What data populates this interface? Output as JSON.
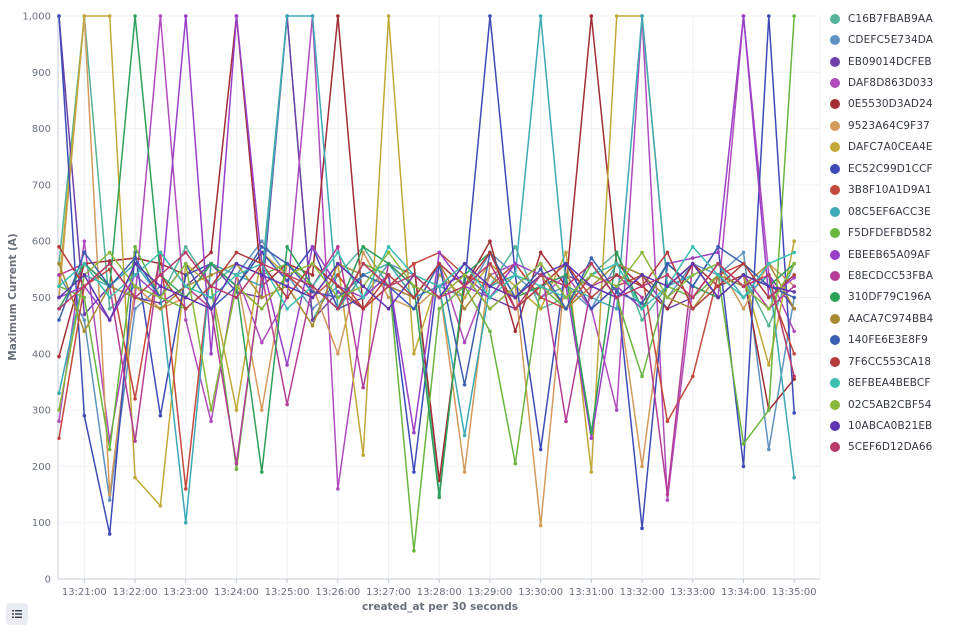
{
  "chart_data": {
    "type": "line",
    "xlabel": "created_at per 30 seconds",
    "ylabel": "Maximum Current (A)",
    "ylim": [
      0,
      1000
    ],
    "grid": true,
    "legend_position": "right",
    "x": [
      "13:20:30",
      "13:21:00",
      "13:21:30",
      "13:22:00",
      "13:22:30",
      "13:23:00",
      "13:23:30",
      "13:24:00",
      "13:24:30",
      "13:25:00",
      "13:25:30",
      "13:26:00",
      "13:26:30",
      "13:27:00",
      "13:27:30",
      "13:28:00",
      "13:28:30",
      "13:29:00",
      "13:29:30",
      "13:30:00",
      "13:30:30",
      "13:31:00",
      "13:31:30",
      "13:32:00",
      "13:32:30",
      "13:33:00",
      "13:33:30",
      "13:34:00",
      "13:34:30",
      "13:35:00"
    ],
    "x_tick_labels": [
      "13:21:00",
      "13:22:00",
      "13:23:00",
      "13:24:00",
      "13:25:00",
      "13:26:00",
      "13:27:00",
      "13:28:00",
      "13:29:00",
      "13:30:00",
      "13:31:00",
      "13:32:00",
      "13:33:00",
      "13:34:00",
      "13:35:00"
    ],
    "y_ticks": [
      0,
      100,
      200,
      300,
      400,
      500,
      600,
      700,
      800,
      900,
      1000
    ],
    "y_tick_labels": [
      "0",
      "100",
      "200",
      "300",
      "400",
      "500",
      "600",
      "700",
      "800",
      "900",
      "1,000"
    ],
    "series": [
      {
        "name": "C16B7FBAB9AA",
        "color": "#54b399",
        "values": [
          560,
          1000,
          480,
          520,
          500,
          590,
          520,
          560,
          540,
          1000,
          460,
          540,
          590,
          520,
          560,
          150,
          540,
          520,
          590,
          480,
          500,
          540,
          580,
          460,
          520,
          560,
          500,
          540,
          450,
          560
        ]
      },
      {
        "name": "CDEFC5E734DA",
        "color": "#6092c0",
        "values": [
          540,
          460,
          140,
          480,
          520,
          500,
          560,
          540,
          600,
          540,
          480,
          520,
          500,
          560,
          540,
          520,
          500,
          580,
          540,
          500,
          520,
          480,
          560,
          540,
          500,
          560,
          540,
          580,
          230,
          500
        ]
      },
      {
        "name": "EB09014DCFEB",
        "color": "#6e40aa",
        "values": [
          1000,
          470,
          520,
          500,
          490,
          520,
          560,
          510,
          500,
          1000,
          460,
          510,
          480,
          520,
          500,
          520,
          540,
          500,
          480,
          520,
          540,
          520,
          500,
          540,
          480,
          500,
          560,
          520,
          540,
          480
        ]
      },
      {
        "name": "DAF8D863D033",
        "color": "#b04bbd",
        "values": [
          280,
          600,
          245,
          500,
          1000,
          460,
          280,
          540,
          420,
          500,
          1000,
          160,
          480,
          520,
          500,
          560,
          420,
          540,
          560,
          500,
          540,
          480,
          300,
          1000,
          140,
          520,
          500,
          1000,
          540,
          440
        ]
      },
      {
        "name": "0E5530D3AD24",
        "color": "#a32d34",
        "values": [
          395,
          560,
          565,
          570,
          560,
          540,
          580,
          1000,
          520,
          560,
          540,
          1000,
          480,
          520,
          560,
          175,
          520,
          600,
          440,
          580,
          520,
          1000,
          560,
          520,
          480,
          560,
          520,
          540,
          300,
          355
        ]
      },
      {
        "name": "9523A64C9F37",
        "color": "#d49a5b",
        "values": [
          500,
          1000,
          150,
          520,
          480,
          500,
          560,
          540,
          300,
          560,
          520,
          400,
          580,
          500,
          480,
          520,
          190,
          560,
          520,
          95,
          560,
          480,
          520,
          200,
          540,
          500,
          560,
          480,
          560,
          520
        ]
      },
      {
        "name": "DAFC7A0CEA4E",
        "color": "#c0a837",
        "values": [
          520,
          1000,
          1000,
          180,
          130,
          560,
          520,
          300,
          580,
          540,
          500,
          560,
          220,
          1000,
          400,
          540,
          500,
          560,
          520,
          480,
          580,
          190,
          1000,
          1000,
          520,
          560,
          500,
          540,
          380,
          600
        ]
      },
      {
        "name": "EC52C99D1CCF",
        "color": "#3e4bb6",
        "values": [
          1000,
          290,
          80,
          580,
          290,
          540,
          560,
          520,
          580,
          530,
          590,
          480,
          500,
          540,
          190,
          560,
          520,
          1000,
          540,
          230,
          560,
          480,
          520,
          90,
          560,
          520,
          590,
          200,
          1000,
          295
        ]
      },
      {
        "name": "3B8F10A1D9A1",
        "color": "#c3493d",
        "values": [
          250,
          520,
          550,
          320,
          580,
          160,
          560,
          520,
          480,
          540,
          500,
          540,
          480,
          520,
          560,
          580,
          540,
          520,
          560,
          500,
          480,
          540,
          520,
          540,
          280,
          360,
          540,
          560,
          520,
          400
        ]
      },
      {
        "name": "08C5EF6ACC3E",
        "color": "#3ca9b5",
        "values": [
          330,
          540,
          520,
          560,
          500,
          100,
          560,
          540,
          520,
          1000,
          1000,
          480,
          540,
          560,
          500,
          520,
          255,
          520,
          540,
          1000,
          520,
          500,
          480,
          1000,
          520,
          540,
          560,
          500,
          540,
          180
        ]
      },
      {
        "name": "F5DFDEFBD582",
        "color": "#6ab53f",
        "values": [
          520,
          500,
          230,
          590,
          500,
          480,
          520,
          195,
          540,
          560,
          520,
          480,
          560,
          540,
          50,
          480,
          520,
          440,
          205,
          520,
          480,
          560,
          500,
          360,
          520,
          500,
          540,
          240,
          300,
          1000
        ]
      },
      {
        "name": "EBEEB65A09AF",
        "color": "#9a3fc7",
        "values": [
          500,
          520,
          460,
          540,
          500,
          1000,
          400,
          1000,
          560,
          380,
          590,
          520,
          500,
          540,
          260,
          580,
          520,
          500,
          560,
          540,
          520,
          250,
          520,
          480,
          560,
          570,
          580,
          1000,
          500,
          535
        ]
      },
      {
        "name": "E8ECDCC53FBA",
        "color": "#b43d96",
        "values": [
          540,
          560,
          520,
          245,
          580,
          520,
          480,
          205,
          540,
          310,
          520,
          590,
          340,
          560,
          520,
          500,
          540,
          480,
          520,
          560,
          280,
          520,
          540,
          500,
          150,
          560,
          500,
          540,
          480,
          520
        ]
      },
      {
        "name": "310DF79C196A",
        "color": "#2ea05a",
        "values": [
          480,
          560,
          520,
          1000,
          540,
          500,
          560,
          520,
          190,
          590,
          520,
          480,
          590,
          560,
          520,
          145,
          540,
          580,
          500,
          520,
          540,
          260,
          580,
          480,
          560,
          520,
          500,
          540,
          520,
          560
        ]
      },
      {
        "name": "AACA7C974BB4",
        "color": "#a88a33",
        "values": [
          560,
          440,
          520,
          500,
          480,
          520,
          540,
          560,
          500,
          520,
          450,
          560,
          540,
          520,
          500,
          560,
          480,
          540,
          500,
          540,
          480,
          520,
          560,
          540,
          500,
          480,
          540,
          520,
          560,
          480
        ]
      },
      {
        "name": "140FE6E3E8F9",
        "color": "#3a5fb0",
        "values": [
          460,
          580,
          520,
          570,
          500,
          560,
          480,
          520,
          590,
          560,
          510,
          500,
          540,
          520,
          480,
          560,
          345,
          580,
          500,
          550,
          480,
          570,
          510,
          490,
          560,
          520,
          590,
          560,
          520,
          500
        ]
      },
      {
        "name": "7F6CC553CA18",
        "color": "#b33c3c",
        "values": [
          590,
          520,
          560,
          500,
          540,
          480,
          520,
          580,
          560,
          500,
          560,
          520,
          480,
          540,
          500,
          560,
          520,
          580,
          480,
          520,
          560,
          500,
          540,
          520,
          580,
          480,
          520,
          560,
          500,
          540
        ]
      },
      {
        "name": "8EFBEA4BEBCF",
        "color": "#3bbfb0",
        "values": [
          520,
          560,
          500,
          540,
          580,
          520,
          500,
          540,
          560,
          480,
          520,
          580,
          500,
          590,
          540,
          520,
          560,
          500,
          540,
          520,
          500,
          540,
          560,
          480,
          520,
          590,
          540,
          500,
          560,
          580
        ]
      },
      {
        "name": "02C5AB2CBF54",
        "color": "#8ab83c",
        "values": [
          300,
          540,
          580,
          520,
          500,
          560,
          300,
          520,
          480,
          540,
          560,
          500,
          520,
          580,
          520,
          500,
          540,
          480,
          520,
          560,
          500,
          540,
          520,
          580,
          500,
          540,
          560,
          520,
          480,
          560
        ]
      },
      {
        "name": "10ABCA0B21EB",
        "color": "#5e35b1",
        "values": [
          500,
          540,
          460,
          560,
          520,
          500,
          480,
          560,
          540,
          520,
          500,
          560,
          520,
          480,
          540,
          500,
          560,
          520,
          500,
          540,
          560,
          520,
          500,
          540,
          520,
          560,
          500,
          540,
          520,
          510
        ]
      },
      {
        "name": "5CEF6D12DA66",
        "color": "#b83a69",
        "values": [
          480,
          520,
          560,
          500,
          540,
          580,
          520,
          500,
          560,
          540,
          520,
          480,
          560,
          520,
          540,
          500,
          520,
          560,
          480,
          540,
          520,
          560,
          500,
          520,
          540,
          500,
          560,
          520,
          540,
          360
        ]
      }
    ]
  },
  "legend_toggle_icon": "list-icon"
}
